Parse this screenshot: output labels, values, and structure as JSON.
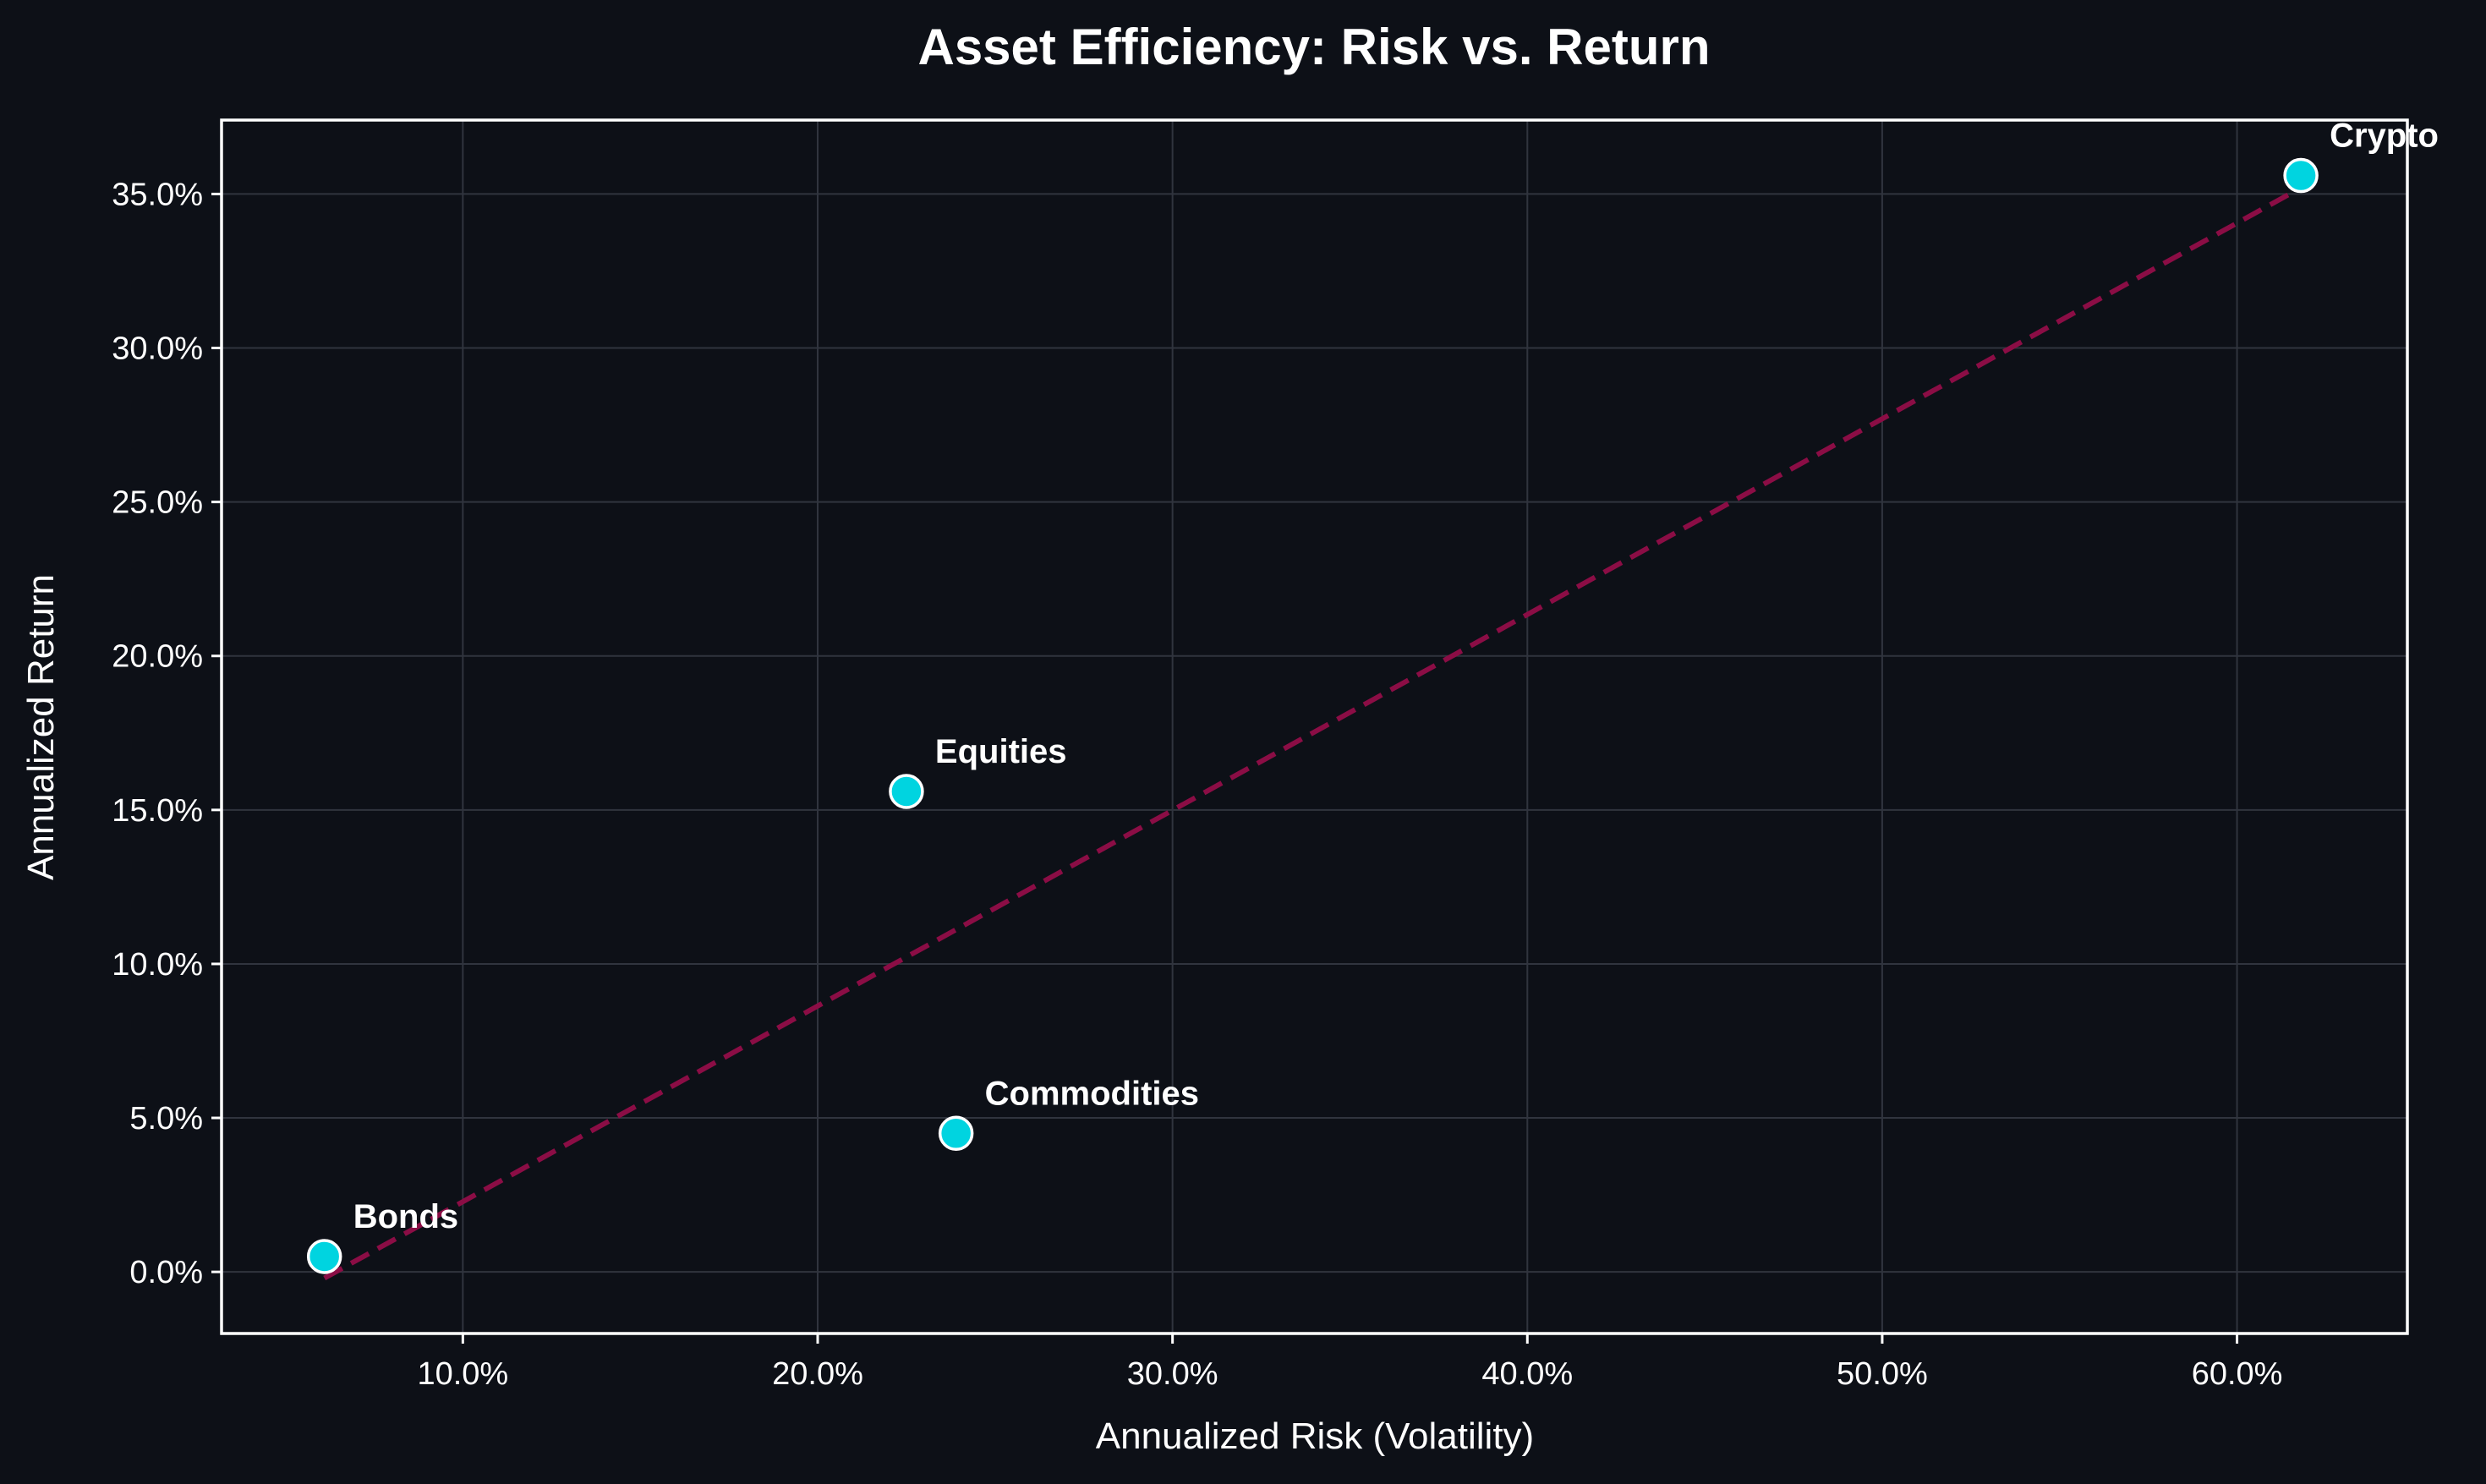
{
  "chart_data": {
    "type": "scatter",
    "title": "Asset Efficiency: Risk vs. Return",
    "xlabel": "Annualized Risk (Volatility)",
    "ylabel": "Annualized Return",
    "xlim": [
      3.2,
      64.8
    ],
    "ylim": [
      -2.0,
      37.4
    ],
    "xticks": [
      10,
      20,
      30,
      40,
      50,
      60
    ],
    "yticks": [
      0,
      5,
      10,
      15,
      20,
      25,
      30,
      35
    ],
    "tick_format": "percent_1dp",
    "grid": true,
    "points": [
      {
        "label": "Bonds",
        "x": 6.1,
        "y": 0.5
      },
      {
        "label": "Equities",
        "x": 22.5,
        "y": 15.6
      },
      {
        "label": "Commodities",
        "x": 23.9,
        "y": 4.5
      },
      {
        "label": "Crypto",
        "x": 61.8,
        "y": 35.6
      }
    ],
    "trendline": {
      "style": "dashed",
      "x": [
        6.1,
        61.8
      ],
      "y": [
        -0.2,
        35.2
      ]
    },
    "colors": {
      "background": "#0d1017",
      "marker_fill": "#00d4e0",
      "marker_edge": "#ffffff",
      "trendline": "#8b0d45",
      "grid": "#30343e",
      "frame": "#ffffff",
      "text": "#ffffff"
    }
  }
}
